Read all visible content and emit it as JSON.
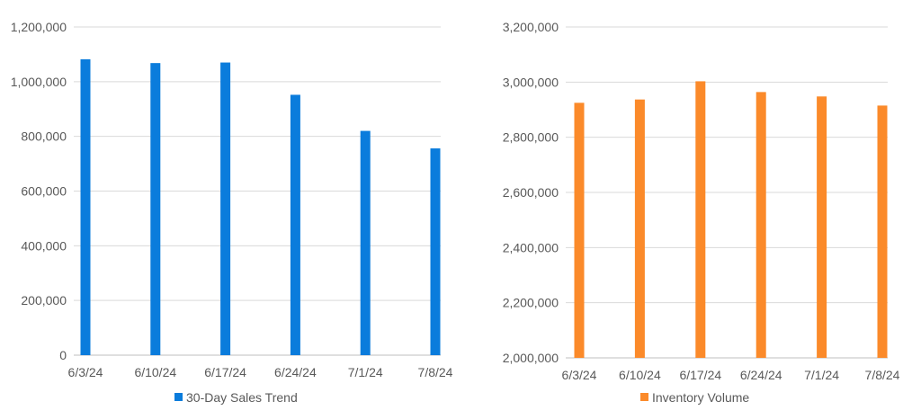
{
  "chart_data": [
    {
      "type": "bar",
      "categories": [
        "6/3/24",
        "6/10/24",
        "6/17/24",
        "6/24/24",
        "7/1/24",
        "7/8/24"
      ],
      "series": [
        {
          "name": "30-Day Sales Trend",
          "values": [
            1082000,
            1068000,
            1070000,
            952000,
            820000,
            756000
          ],
          "color": "#0a7cdc"
        }
      ],
      "ylim": [
        0,
        1200000
      ],
      "yticks": [
        "0",
        "200,000",
        "400,000",
        "600,000",
        "800,000",
        "1,000,000",
        "1,200,000"
      ],
      "grid": true,
      "legend": "bottom",
      "title": "",
      "xlabel": "",
      "ylabel": ""
    },
    {
      "type": "bar",
      "categories": [
        "6/3/24",
        "6/10/24",
        "6/17/24",
        "6/24/24",
        "7/1/24",
        "7/8/24"
      ],
      "series": [
        {
          "name": "Inventory Volume",
          "values": [
            2925000,
            2937000,
            3003000,
            2964000,
            2948000,
            2915000
          ],
          "color": "#fb8a2a"
        }
      ],
      "ylim": [
        2000000,
        3200000
      ],
      "yticks": [
        "2,000,000",
        "2,200,000",
        "2,400,000",
        "2,600,000",
        "2,800,000",
        "3,000,000",
        "3,200,000"
      ],
      "grid": true,
      "legend": "bottom",
      "title": "",
      "xlabel": "",
      "ylabel": ""
    }
  ]
}
